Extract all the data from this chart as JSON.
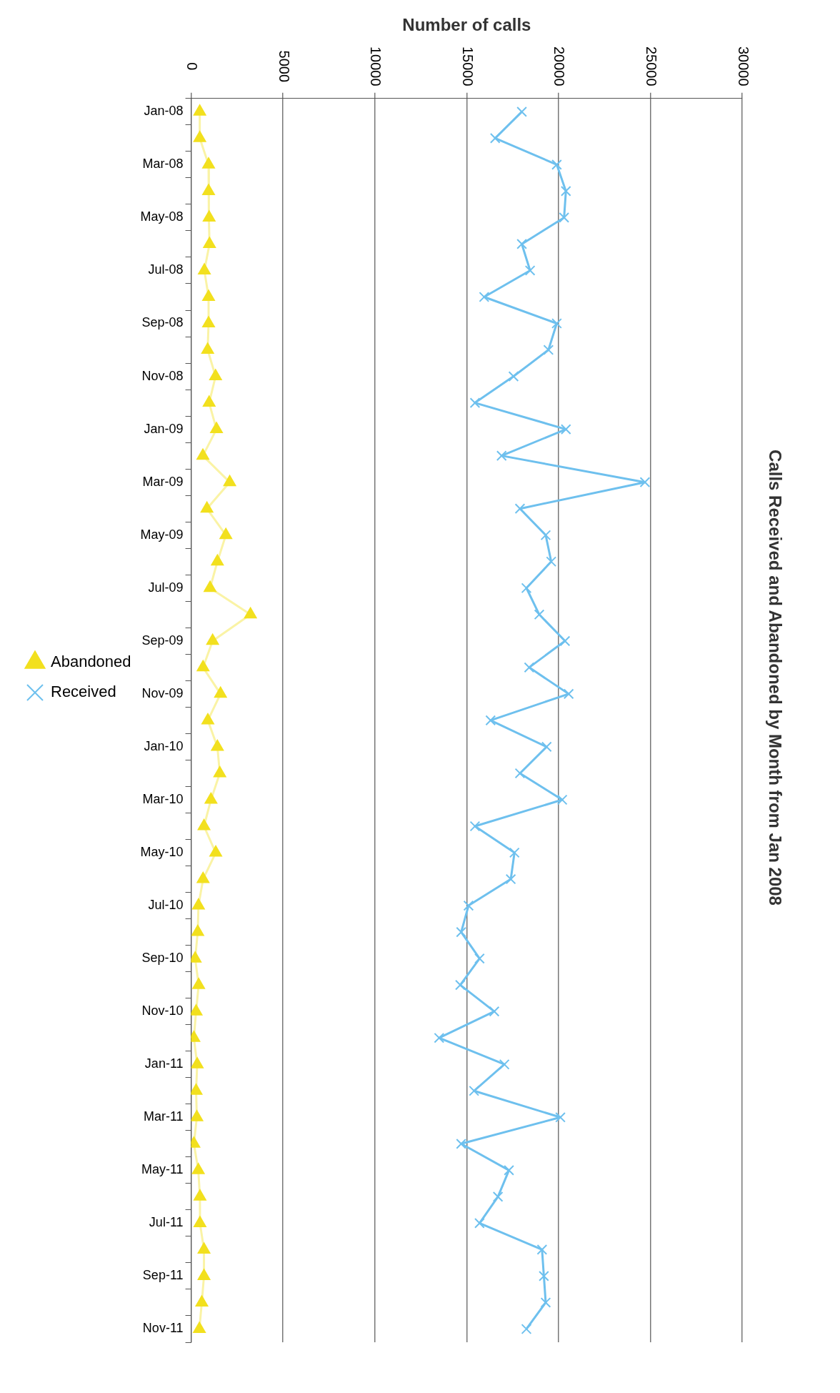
{
  "chart_data": {
    "type": "line",
    "title": "Calls Received and Abandoned by Month from Jan 2008",
    "xlabel": "Number of calls",
    "categories": [
      "Jan-08",
      null,
      "Mar-08",
      null,
      "May-08",
      null,
      "Jul-08",
      null,
      "Sep-08",
      null,
      "Nov-08",
      null,
      "Jan-09",
      null,
      "Mar-09",
      null,
      "May-09",
      null,
      "Jul-09",
      null,
      "Sep-09",
      null,
      "Nov-09",
      null,
      "Jan-10",
      null,
      "Mar-10",
      null,
      "May-10",
      null,
      "Jul-10",
      null,
      "Sep-10",
      null,
      "Nov-10",
      null,
      "Jan-11",
      null,
      "Mar-11",
      null,
      "May-11",
      null,
      "Jul-11",
      null,
      "Sep-11",
      null,
      "Nov-11"
    ],
    "series": [
      {
        "name": "Abandoned",
        "color": "#f2e01e",
        "marker": "triangle",
        "values": [
          470,
          470,
          950,
          950,
          980,
          1000,
          720,
          950,
          950,
          900,
          1330,
          980,
          1380,
          640,
          2100,
          860,
          1890,
          1430,
          1030,
          3230,
          1170,
          650,
          1600,
          910,
          1430,
          1560,
          1080,
          700,
          1340,
          650,
          400,
          360,
          220,
          410,
          270,
          150,
          330,
          270,
          310,
          150,
          390,
          480,
          480,
          700,
          700,
          580,
          450
        ]
      },
      {
        "name": "Received",
        "color": "#6ec0ee",
        "marker": "cross",
        "values": [
          18000,
          16550,
          19900,
          20400,
          20300,
          18000,
          18450,
          15950,
          19900,
          19450,
          17550,
          15450,
          20400,
          16900,
          24700,
          17900,
          19300,
          19600,
          18250,
          18950,
          20350,
          18400,
          20550,
          16300,
          19350,
          17900,
          20200,
          15450,
          17600,
          17400,
          15100,
          14700,
          15700,
          14650,
          16500,
          13500,
          17050,
          15400,
          20100,
          14700,
          17300,
          16700,
          15700,
          19100,
          19200,
          19300,
          18250
        ]
      }
    ],
    "orientation": "horizontal",
    "xlim": [
      0,
      30000
    ],
    "xticks": [
      0,
      5000,
      10000,
      15000,
      20000,
      25000,
      30000
    ],
    "grid": "x",
    "legend": "left"
  }
}
